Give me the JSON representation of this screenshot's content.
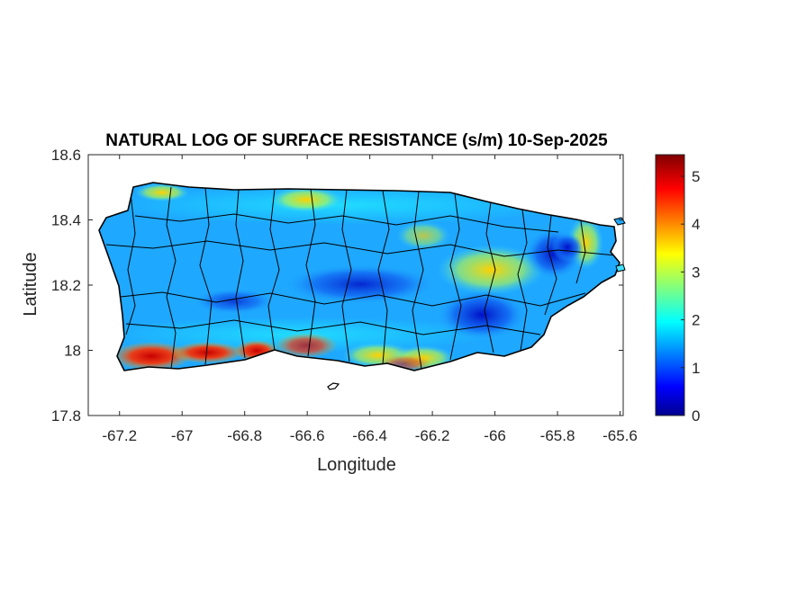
{
  "figure": {
    "title": "NATURAL LOG OF SURFACE RESISTANCE (s/m) 10-Sep-2025",
    "xlabel": "Longitude",
    "ylabel": "Latitude"
  },
  "axes": {
    "x_ticks": [
      "-67.2",
      "-67",
      "-66.8",
      "-66.6",
      "-66.4",
      "-66.2",
      "-66",
      "-65.8",
      "-65.6"
    ],
    "y_ticks": [
      "18.6",
      "18.4",
      "18.2",
      "18",
      "17.8"
    ],
    "xlim": [
      -67.3,
      -65.59
    ],
    "ylim": [
      17.8,
      18.6
    ]
  },
  "colorbar": {
    "ticks": [
      "5",
      "4",
      "3",
      "2",
      "1",
      "0"
    ],
    "range": [
      0,
      5.45
    ],
    "colormap": "jet"
  },
  "map": {
    "region": "Puerto Rico",
    "field": "surface resistance",
    "colors": {
      "background": "#1ea8ff",
      "low": "#00008f",
      "high": "#800000",
      "border": "#000000"
    }
  }
}
